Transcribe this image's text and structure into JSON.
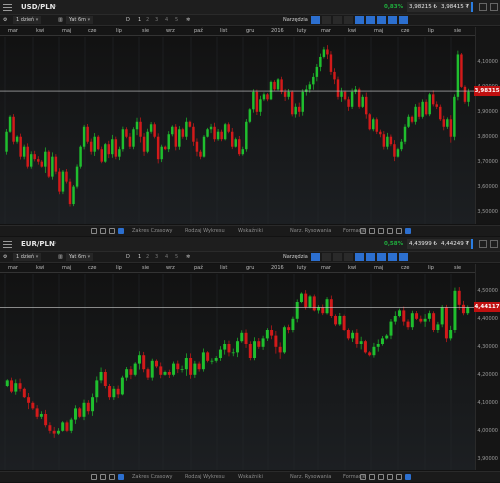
{
  "panels": [
    {
      "symbol": "USD/PLN",
      "change": "0,83%",
      "bid": "3,98215",
      "ask": "3,98415",
      "bid_suffix": "₺",
      "ask_suffix": "₮",
      "current_price": "3,98315",
      "toolbar": {
        "period": "1 dzień",
        "interval": "Yat 6m",
        "candle": "D",
        "one": "1",
        "tools": "Narzędzia"
      },
      "months": [
        "mar",
        "kwi",
        "maj",
        "cze",
        "lip",
        "sie",
        "wrz",
        "paź",
        "list",
        "gru",
        "2016",
        "luty",
        "mar",
        "kwi",
        "maj",
        "cze",
        "lip",
        "sie"
      ],
      "yticks": [
        "4,10000",
        "4,00000",
        "3,90000",
        "3,80000",
        "3,70000",
        "3,60000",
        "3,50000"
      ],
      "bottom": [
        "Zakres Czasowy",
        "Rodzaj Wykresu",
        "Wskaźniki",
        "Narz. Rysowania",
        "Formacje"
      ],
      "chart_data": {
        "type": "candlestick",
        "ylim": [
          3.45,
          4.2
        ],
        "yticks": [
          4.1,
          4.0,
          3.9,
          3.8,
          3.7,
          3.6,
          3.5
        ],
        "current": 3.98315,
        "path": [
          3.74,
          3.82,
          3.88,
          3.78,
          3.8,
          3.72,
          3.76,
          3.68,
          3.73,
          3.71,
          3.7,
          3.68,
          3.74,
          3.64,
          3.72,
          3.66,
          3.58,
          3.66,
          3.62,
          3.53,
          3.6,
          3.68,
          3.76,
          3.84,
          3.78,
          3.74,
          3.8,
          3.75,
          3.7,
          3.77,
          3.73,
          3.79,
          3.72,
          3.75,
          3.83,
          3.8,
          3.76,
          3.83,
          3.86,
          3.8,
          3.74,
          3.82,
          3.85,
          3.8,
          3.71,
          3.76,
          3.75,
          3.81,
          3.84,
          3.76,
          3.83,
          3.8,
          3.86,
          3.84,
          3.78,
          3.74,
          3.72,
          3.8,
          3.83,
          3.84,
          3.79,
          3.82,
          3.79,
          3.85,
          3.82,
          3.76,
          3.79,
          3.73,
          3.75,
          3.86,
          3.91,
          3.98,
          3.9,
          3.95,
          3.97,
          3.95,
          4.02,
          3.99,
          4.03,
          3.98,
          3.96,
          3.98,
          3.89,
          3.92,
          3.9,
          3.98,
          3.99,
          4.01,
          4.04,
          4.08,
          4.12,
          4.15,
          4.13,
          4.06,
          4.03,
          3.96,
          3.98,
          3.95,
          3.92,
          3.98,
          3.99,
          3.92,
          3.96,
          3.89,
          3.83,
          3.87,
          3.82,
          3.81,
          3.76,
          3.8,
          3.77,
          3.72,
          3.75,
          3.78,
          3.84,
          3.88,
          3.86,
          3.92,
          3.88,
          3.94,
          3.89,
          3.97,
          3.93,
          3.92,
          3.87,
          3.84,
          3.87,
          3.8,
          3.96,
          4.13,
          4.0,
          3.94,
          3.98
        ]
      }
    },
    {
      "symbol": "EUR/PLN",
      "change": "0,58%",
      "bid": "4,43999",
      "ask": "4,44249",
      "bid_suffix": "₺",
      "ask_suffix": "₮",
      "current_price": "4,44117",
      "toolbar": {
        "period": "1 dzień",
        "interval": "Yat 6m",
        "candle": "D",
        "one": "1",
        "tools": "Narzędzia"
      },
      "months": [
        "mar",
        "kwi",
        "maj",
        "cze",
        "lip",
        "sie",
        "wrz",
        "paź",
        "list",
        "gru",
        "2016",
        "luty",
        "mar",
        "kwi",
        "maj",
        "cze",
        "lip",
        "sie"
      ],
      "yticks": [
        "4,50000",
        "4,40000",
        "4,30000",
        "4,20000",
        "4,10000",
        "4,00000",
        "3,90000"
      ],
      "bottom": [
        "Zakres Czasowy",
        "Rodzaj Wykresu",
        "Wskaźniki",
        "Narz. Rysowania",
        "Formacje"
      ],
      "chart_data": {
        "type": "candlestick",
        "ylim": [
          3.86,
          4.56
        ],
        "yticks": [
          4.5,
          4.4,
          4.3,
          4.2,
          4.1,
          4.0,
          3.9
        ],
        "current": 4.44117,
        "path": [
          4.16,
          4.18,
          4.14,
          4.17,
          4.15,
          4.12,
          4.1,
          4.08,
          4.05,
          4.06,
          4.02,
          4.0,
          3.99,
          4.0,
          4.03,
          4.0,
          4.04,
          4.08,
          4.05,
          4.1,
          4.07,
          4.12,
          4.18,
          4.21,
          4.16,
          4.12,
          4.15,
          4.13,
          4.19,
          4.22,
          4.2,
          4.24,
          4.27,
          4.22,
          4.19,
          4.25,
          4.23,
          4.2,
          4.21,
          4.2,
          4.24,
          4.22,
          4.22,
          4.26,
          4.2,
          4.24,
          4.22,
          4.28,
          4.25,
          4.25,
          4.26,
          4.29,
          4.31,
          4.28,
          4.28,
          4.32,
          4.35,
          4.31,
          4.26,
          4.32,
          4.3,
          4.33,
          4.36,
          4.34,
          4.3,
          4.28,
          4.37,
          4.36,
          4.4,
          4.46,
          4.49,
          4.44,
          4.48,
          4.43,
          4.44,
          4.42,
          4.47,
          4.41,
          4.38,
          4.41,
          4.36,
          4.33,
          4.35,
          4.31,
          4.32,
          4.28,
          4.27,
          4.3,
          4.31,
          4.33,
          4.34,
          4.39,
          4.41,
          4.43,
          4.39,
          4.37,
          4.42,
          4.4,
          4.39,
          4.4,
          4.42,
          4.36,
          4.38,
          4.44,
          4.33,
          4.36,
          4.5,
          4.45,
          4.42,
          4.44
        ]
      }
    }
  ],
  "colors": {
    "bull": "#1fbf2e",
    "bear": "#d21a1a",
    "accent": "#2c6fcf",
    "price_tag": "#c01010"
  }
}
